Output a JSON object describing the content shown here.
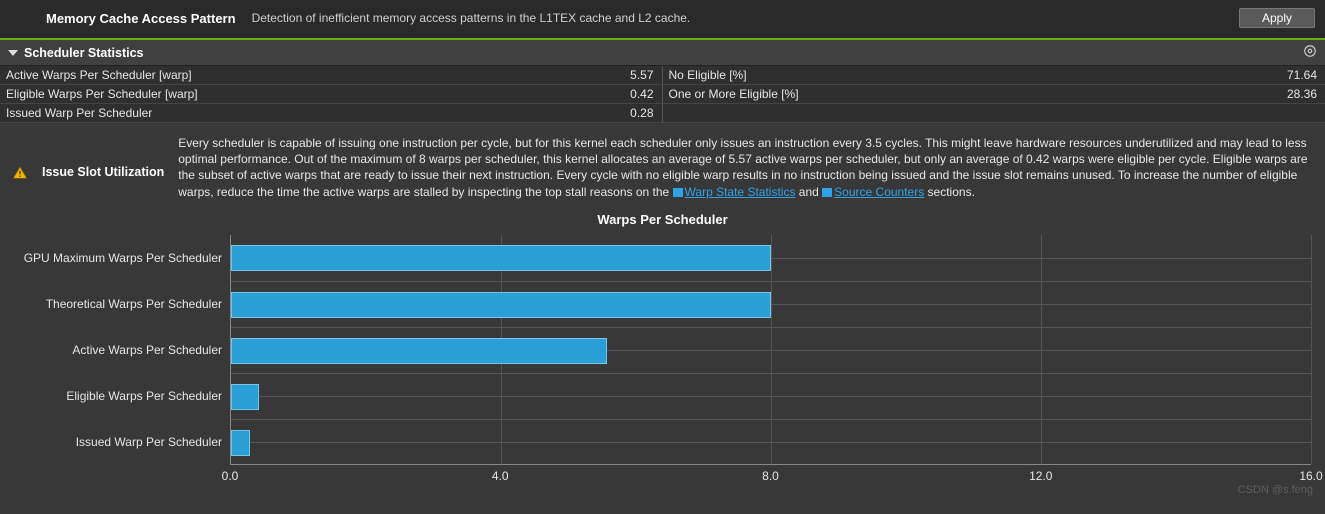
{
  "header": {
    "title": "Memory Cache Access Pattern",
    "description": "Detection of inefficient memory access patterns in the L1TEX cache and L2 cache.",
    "apply_label": "Apply"
  },
  "section": {
    "title": "Scheduler Statistics"
  },
  "stats": {
    "rows": [
      {
        "left_label": "Active Warps Per Scheduler [warp]",
        "left_value": "5.57",
        "right_label": "No Eligible [%]",
        "right_value": "71.64"
      },
      {
        "left_label": "Eligible Warps Per Scheduler [warp]",
        "left_value": "0.42",
        "right_label": "One or More Eligible [%]",
        "right_value": "28.36"
      },
      {
        "left_label": "Issued Warp Per Scheduler",
        "left_value": "0.28",
        "right_label": "",
        "right_value": ""
      }
    ]
  },
  "issue": {
    "title": "Issue Slot Utilization",
    "text_before_link1": "Every scheduler is capable of issuing one instruction per cycle, but for this kernel each scheduler only issues an instruction every 3.5 cycles. This might leave hardware resources underutilized and may lead to less optimal performance. Out of the maximum of 8 warps per scheduler, this kernel allocates an average of 5.57 active warps per scheduler, but only an average of 0.42 warps were eligible per cycle. Eligible warps are the subset of active warps that are ready to issue their next instruction. Every cycle with no eligible warp results in no instruction being issued and the issue slot remains unused. To increase the number of eligible warps, reduce the time the active warps are stalled by inspecting the top stall reasons on the ",
    "link1_label": "Warp State Statistics",
    "text_between": " and ",
    "link2_label": "Source Counters",
    "text_after_link2": " sections."
  },
  "chart": {
    "title": "Warps Per Scheduler",
    "type": "bar-horizontal",
    "xmin": 0.0,
    "xmax": 16.0,
    "xticks": [
      0.0,
      4.0,
      8.0,
      12.0,
      16.0
    ],
    "xtick_labels": [
      "0.0",
      "4.0",
      "8.0",
      "12.0",
      "16.0"
    ],
    "bar_color": "#2a9fd6",
    "bar_border_color": "#78c5ec",
    "grid_color": "#555555",
    "axis_color": "#888888",
    "background_color": "#383838",
    "label_fontsize": 12,
    "title_fontsize": 13,
    "series": [
      {
        "label": "GPU Maximum Warps Per Scheduler",
        "value": 8.0
      },
      {
        "label": "Theoretical Warps Per Scheduler",
        "value": 8.0
      },
      {
        "label": "Active Warps Per Scheduler",
        "value": 5.57
      },
      {
        "label": "Eligible Warps Per Scheduler",
        "value": 0.42
      },
      {
        "label": "Issued Warp Per Scheduler",
        "value": 0.28
      }
    ]
  },
  "watermark": "CSDN @s.feng"
}
